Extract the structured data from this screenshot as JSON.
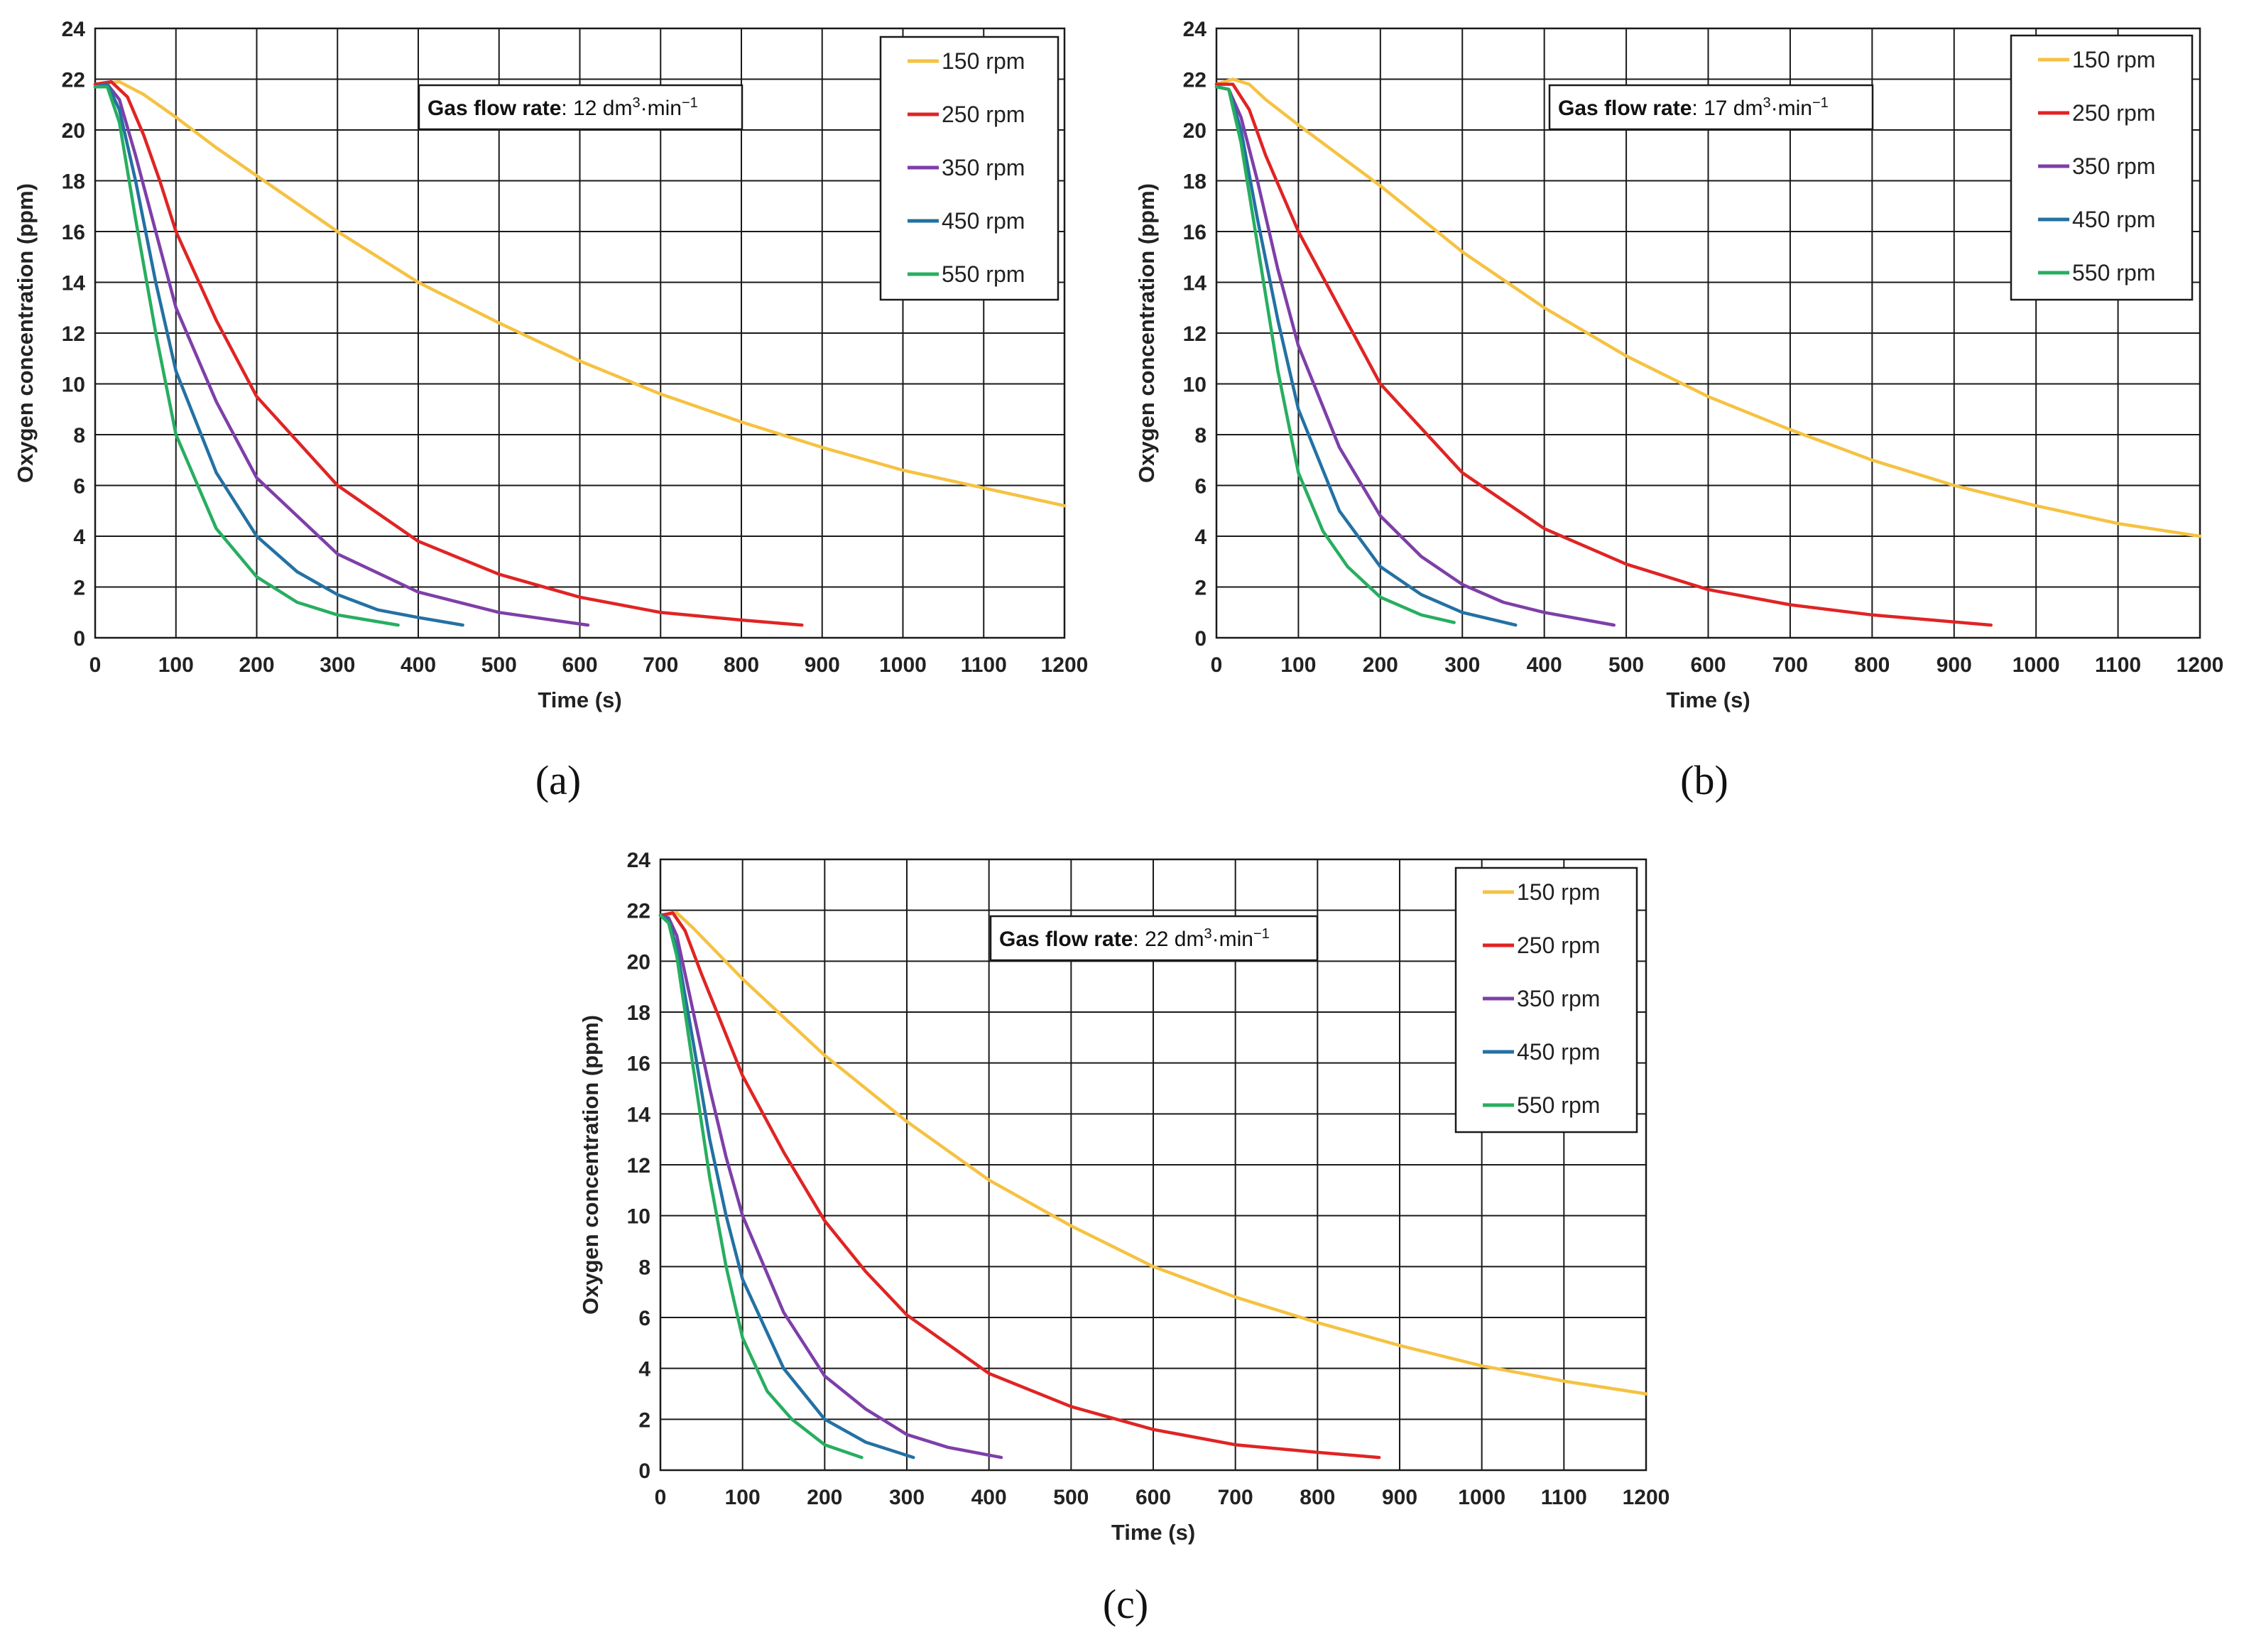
{
  "chart_data": [
    {
      "type": "line",
      "panel": "(a)",
      "annotation": {
        "label": "Gas flow rate",
        "value": "12 dm",
        "sup1": "3",
        "mid": "·min",
        "sup2": "−1"
      },
      "xlabel": "Time (s)",
      "ylabel": "Oxygen concentration (ppm)",
      "xlim": [
        0,
        1200
      ],
      "ylim": [
        0,
        24
      ],
      "xticks": [
        0,
        100,
        200,
        300,
        400,
        500,
        600,
        700,
        800,
        900,
        1000,
        1100,
        1200
      ],
      "yticks": [
        0,
        2,
        4,
        6,
        8,
        10,
        12,
        14,
        16,
        18,
        20,
        22,
        24
      ],
      "grid": true,
      "legend_position": "top-right",
      "series": [
        {
          "name": "150 rpm",
          "color": "#F5C242",
          "x": [
            0,
            30,
            60,
            100,
            150,
            200,
            300,
            400,
            500,
            600,
            700,
            800,
            900,
            1000,
            1100,
            1200
          ],
          "y": [
            21.8,
            21.9,
            21.4,
            20.5,
            19.3,
            18.2,
            16.0,
            14.0,
            12.4,
            10.9,
            9.6,
            8.5,
            7.5,
            6.6,
            5.9,
            5.2
          ]
        },
        {
          "name": "250 rpm",
          "color": "#E02424",
          "x": [
            0,
            20,
            40,
            60,
            80,
            100,
            150,
            200,
            300,
            400,
            500,
            600,
            700,
            800,
            875
          ],
          "y": [
            21.8,
            21.9,
            21.3,
            19.8,
            18.0,
            16.0,
            12.5,
            9.5,
            6.0,
            3.8,
            2.5,
            1.6,
            1.0,
            0.7,
            0.5
          ]
        },
        {
          "name": "350 rpm",
          "color": "#7E3FA8",
          "x": [
            0,
            15,
            30,
            50,
            75,
            100,
            150,
            200,
            300,
            400,
            500,
            610
          ],
          "y": [
            21.7,
            21.8,
            21.2,
            19.0,
            16.0,
            13.0,
            9.3,
            6.3,
            3.3,
            1.8,
            1.0,
            0.5
          ]
        },
        {
          "name": "450 rpm",
          "color": "#2471A3",
          "x": [
            0,
            15,
            30,
            50,
            75,
            100,
            150,
            200,
            250,
            300,
            350,
            400,
            455
          ],
          "y": [
            21.7,
            21.8,
            20.8,
            18.0,
            14.0,
            10.5,
            6.5,
            4.0,
            2.6,
            1.7,
            1.1,
            0.8,
            0.5
          ]
        },
        {
          "name": "550 rpm",
          "color": "#27AE60",
          "x": [
            0,
            15,
            30,
            50,
            75,
            100,
            150,
            200,
            250,
            300,
            375
          ],
          "y": [
            21.7,
            21.7,
            20.3,
            16.5,
            12.0,
            8.0,
            4.3,
            2.4,
            1.4,
            0.9,
            0.5
          ]
        }
      ]
    },
    {
      "type": "line",
      "panel": "(b)",
      "annotation": {
        "label": "Gas flow rate",
        "value": "17 dm",
        "sup1": "3",
        "mid": "·min",
        "sup2": "−1"
      },
      "xlabel": "Time (s)",
      "ylabel": "Oxygen concentration (ppm)",
      "xlim": [
        0,
        1200
      ],
      "ylim": [
        0,
        24
      ],
      "xticks": [
        0,
        100,
        200,
        300,
        400,
        500,
        600,
        700,
        800,
        900,
        1000,
        1100,
        1200
      ],
      "yticks": [
        0,
        2,
        4,
        6,
        8,
        10,
        12,
        14,
        16,
        18,
        20,
        22,
        24
      ],
      "grid": true,
      "legend_position": "top-right",
      "series": [
        {
          "name": "150 rpm",
          "color": "#F5C242",
          "x": [
            0,
            20,
            40,
            60,
            100,
            150,
            200,
            300,
            400,
            500,
            600,
            700,
            800,
            900,
            1000,
            1100,
            1200
          ],
          "y": [
            21.8,
            22.0,
            21.8,
            21.2,
            20.2,
            19.0,
            17.8,
            15.2,
            13.0,
            11.1,
            9.5,
            8.2,
            7.0,
            6.0,
            5.2,
            4.5,
            4.0
          ]
        },
        {
          "name": "250 rpm",
          "color": "#E02424",
          "x": [
            0,
            20,
            40,
            60,
            80,
            100,
            150,
            200,
            300,
            400,
            500,
            600,
            700,
            800,
            945
          ],
          "y": [
            21.8,
            21.8,
            20.8,
            19.0,
            17.5,
            16.0,
            13.0,
            10.0,
            6.5,
            4.3,
            2.9,
            1.9,
            1.3,
            0.9,
            0.5
          ]
        },
        {
          "name": "350 rpm",
          "color": "#7E3FA8",
          "x": [
            0,
            15,
            30,
            50,
            75,
            100,
            150,
            200,
            250,
            300,
            350,
            400,
            485
          ],
          "y": [
            21.7,
            21.6,
            20.5,
            18.0,
            14.5,
            11.5,
            7.5,
            4.8,
            3.2,
            2.1,
            1.4,
            1.0,
            0.5
          ]
        },
        {
          "name": "450 rpm",
          "color": "#2471A3",
          "x": [
            0,
            15,
            30,
            50,
            75,
            100,
            150,
            200,
            250,
            300,
            365
          ],
          "y": [
            21.7,
            21.6,
            20.0,
            16.5,
            12.5,
            9.0,
            5.0,
            2.8,
            1.7,
            1.0,
            0.5
          ]
        },
        {
          "name": "550 rpm",
          "color": "#27AE60",
          "x": [
            0,
            15,
            30,
            50,
            75,
            100,
            130,
            160,
            200,
            250,
            290
          ],
          "y": [
            21.7,
            21.6,
            19.5,
            15.5,
            10.5,
            6.5,
            4.2,
            2.8,
            1.6,
            0.9,
            0.6
          ]
        }
      ]
    },
    {
      "type": "line",
      "panel": "(c)",
      "annotation": {
        "label": "Gas flow rate",
        "value": "22 dm",
        "sup1": "3",
        "mid": "·min",
        "sup2": "−1"
      },
      "xlabel": "Time (s)",
      "ylabel": "Oxygen concentration (ppm)",
      "xlim": [
        0,
        1200
      ],
      "ylim": [
        0,
        24
      ],
      "xticks": [
        0,
        100,
        200,
        300,
        400,
        500,
        600,
        700,
        800,
        900,
        1000,
        1100,
        1200
      ],
      "yticks": [
        0,
        2,
        4,
        6,
        8,
        10,
        12,
        14,
        16,
        18,
        20,
        22,
        24
      ],
      "grid": true,
      "legend_position": "top-right",
      "series": [
        {
          "name": "150 rpm",
          "color": "#F5C242",
          "x": [
            0,
            20,
            40,
            70,
            100,
            150,
            200,
            300,
            400,
            500,
            600,
            700,
            800,
            900,
            1000,
            1100,
            1200
          ],
          "y": [
            21.8,
            21.9,
            21.3,
            20.3,
            19.3,
            17.8,
            16.3,
            13.7,
            11.4,
            9.6,
            8.0,
            6.8,
            5.8,
            4.9,
            4.1,
            3.5,
            3.0
          ]
        },
        {
          "name": "250 rpm",
          "color": "#E02424",
          "x": [
            0,
            15,
            30,
            50,
            75,
            100,
            150,
            200,
            250,
            300,
            400,
            500,
            600,
            700,
            800,
            875
          ],
          "y": [
            21.8,
            21.9,
            21.2,
            19.5,
            17.5,
            15.5,
            12.5,
            9.8,
            7.8,
            6.1,
            3.8,
            2.5,
            1.6,
            1.0,
            0.7,
            0.5
          ]
        },
        {
          "name": "350 rpm",
          "color": "#7E3FA8",
          "x": [
            0,
            10,
            20,
            40,
            60,
            80,
            100,
            150,
            200,
            250,
            300,
            350,
            415
          ],
          "y": [
            21.8,
            21.7,
            21.0,
            18.0,
            15.0,
            12.3,
            10.0,
            6.2,
            3.7,
            2.4,
            1.4,
            0.9,
            0.5
          ]
        },
        {
          "name": "450 rpm",
          "color": "#2471A3",
          "x": [
            0,
            10,
            20,
            40,
            60,
            80,
            100,
            150,
            200,
            250,
            308
          ],
          "y": [
            21.8,
            21.6,
            20.5,
            16.8,
            13.0,
            10.0,
            7.5,
            4.0,
            2.0,
            1.1,
            0.5
          ]
        },
        {
          "name": "550 rpm",
          "color": "#27AE60",
          "x": [
            0,
            10,
            20,
            40,
            60,
            80,
            100,
            130,
            160,
            200,
            245
          ],
          "y": [
            21.8,
            21.5,
            20.2,
            15.8,
            11.5,
            8.0,
            5.2,
            3.1,
            2.0,
            1.0,
            0.5
          ]
        }
      ]
    }
  ]
}
